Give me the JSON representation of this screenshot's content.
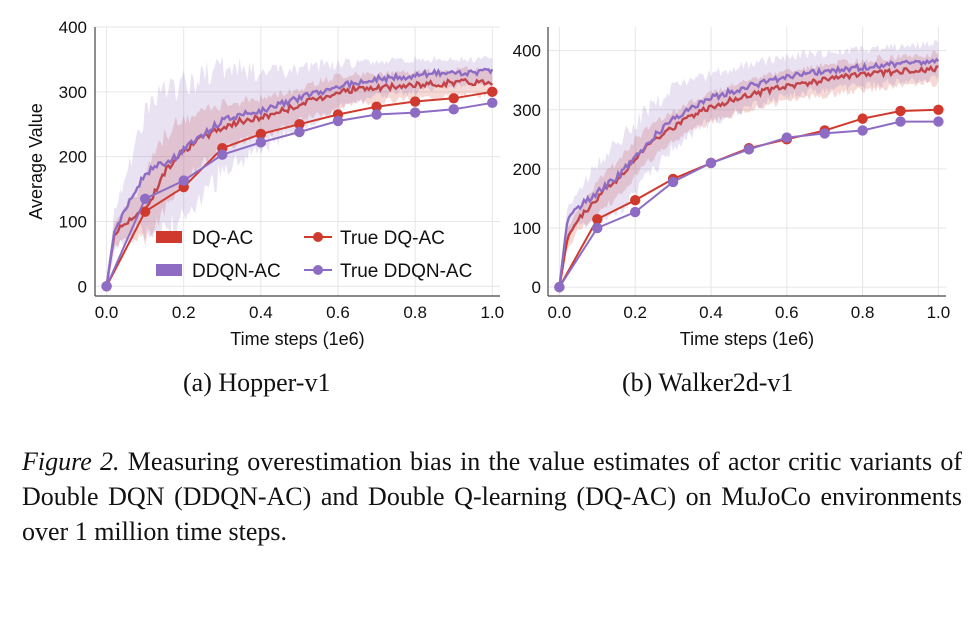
{
  "chart_data": [
    {
      "type": "line",
      "id": "hopper",
      "subcaption": "(a) Hopper-v1",
      "xlabel": "Time steps (1e6)",
      "ylabel": "Average Value",
      "xlim": [
        -0.03,
        1.02
      ],
      "ylim": [
        -15,
        400
      ],
      "xticks": [
        "0.0",
        "0.2",
        "0.4",
        "0.6",
        "0.8",
        "1.0"
      ],
      "yticks": [
        "0",
        "100",
        "200",
        "300",
        "400"
      ],
      "grid": true,
      "legend": {
        "placement": "lower-left",
        "entries": [
          "DQ-AC",
          "True DQ-AC",
          "DDQN-AC",
          "True DDQN-AC"
        ]
      },
      "series": [
        {
          "name": "DQ-AC",
          "kind": "estimate",
          "color": "#d03a2e",
          "x": [
            0,
            0.02,
            0.05,
            0.08,
            0.1,
            0.12,
            0.15,
            0.18,
            0.2,
            0.25,
            0.3,
            0.35,
            0.4,
            0.45,
            0.5,
            0.55,
            0.6,
            0.65,
            0.7,
            0.75,
            0.8,
            0.85,
            0.9,
            0.95,
            1.0
          ],
          "y": [
            0,
            80,
            100,
            110,
            120,
            140,
            175,
            200,
            210,
            230,
            245,
            255,
            260,
            270,
            280,
            290,
            300,
            305,
            305,
            308,
            310,
            312,
            315,
            315,
            315
          ],
          "band": [
            0,
            20,
            25,
            35,
            50,
            55,
            55,
            50,
            45,
            40,
            35,
            30,
            30,
            28,
            25,
            25,
            25,
            22,
            22,
            20,
            20,
            20,
            20,
            20,
            20
          ]
        },
        {
          "name": "DDQN-AC",
          "kind": "estimate",
          "color": "#8e6cc4",
          "x": [
            0,
            0.02,
            0.05,
            0.08,
            0.1,
            0.12,
            0.15,
            0.18,
            0.2,
            0.25,
            0.3,
            0.35,
            0.4,
            0.45,
            0.5,
            0.55,
            0.6,
            0.65,
            0.7,
            0.75,
            0.8,
            0.85,
            0.9,
            0.95,
            1.0
          ],
          "y": [
            0,
            85,
            120,
            155,
            170,
            185,
            190,
            200,
            210,
            235,
            255,
            265,
            270,
            280,
            290,
            300,
            308,
            315,
            320,
            322,
            325,
            328,
            330,
            330,
            332
          ],
          "band": [
            0,
            30,
            50,
            70,
            90,
            100,
            105,
            105,
            100,
            90,
            80,
            70,
            60,
            50,
            45,
            40,
            35,
            30,
            28,
            25,
            25,
            22,
            20,
            20,
            20
          ]
        },
        {
          "name": "True DQ-AC",
          "kind": "true",
          "color": "#d03a2e",
          "x": [
            0,
            0.1,
            0.2,
            0.3,
            0.4,
            0.5,
            0.6,
            0.7,
            0.8,
            0.9,
            1.0
          ],
          "y": [
            0,
            115,
            153,
            213,
            235,
            250,
            265,
            277,
            285,
            290,
            300
          ]
        },
        {
          "name": "True DDQN-AC",
          "kind": "true",
          "color": "#8e6cc4",
          "x": [
            0,
            0.1,
            0.2,
            0.3,
            0.4,
            0.5,
            0.6,
            0.7,
            0.8,
            0.9,
            1.0
          ],
          "y": [
            0,
            135,
            163,
            203,
            222,
            238,
            255,
            265,
            268,
            273,
            283
          ]
        }
      ]
    },
    {
      "type": "line",
      "id": "walker",
      "subcaption": "(b) Walker2d-v1",
      "xlabel": "Time steps (1e6)",
      "ylabel": "",
      "xlim": [
        -0.03,
        1.02
      ],
      "ylim": [
        -15,
        440
      ],
      "xticks": [
        "0.0",
        "0.2",
        "0.4",
        "0.6",
        "0.8",
        "1.0"
      ],
      "yticks": [
        "0",
        "100",
        "200",
        "300",
        "400"
      ],
      "grid": true,
      "series": [
        {
          "name": "DQ-AC",
          "kind": "estimate",
          "color": "#d03a2e",
          "x": [
            0,
            0.02,
            0.05,
            0.08,
            0.1,
            0.12,
            0.15,
            0.18,
            0.2,
            0.25,
            0.3,
            0.35,
            0.4,
            0.45,
            0.5,
            0.55,
            0.6,
            0.65,
            0.7,
            0.75,
            0.8,
            0.85,
            0.9,
            0.95,
            1.0
          ],
          "y": [
            0,
            80,
            115,
            135,
            150,
            165,
            180,
            200,
            220,
            250,
            270,
            290,
            305,
            315,
            325,
            333,
            340,
            345,
            350,
            355,
            358,
            362,
            365,
            368,
            370
          ],
          "band": [
            0,
            15,
            20,
            25,
            30,
            30,
            30,
            30,
            30,
            28,
            25,
            25,
            25,
            25,
            25,
            25,
            25,
            25,
            25,
            25,
            25,
            25,
            25,
            25,
            25
          ]
        },
        {
          "name": "DDQN-AC",
          "kind": "estimate",
          "color": "#8e6cc4",
          "x": [
            0,
            0.02,
            0.05,
            0.08,
            0.1,
            0.12,
            0.15,
            0.18,
            0.2,
            0.25,
            0.3,
            0.35,
            0.4,
            0.45,
            0.5,
            0.55,
            0.6,
            0.65,
            0.7,
            0.75,
            0.8,
            0.85,
            0.9,
            0.95,
            1.0
          ],
          "y": [
            0,
            110,
            135,
            150,
            160,
            170,
            185,
            205,
            220,
            255,
            285,
            305,
            320,
            330,
            340,
            348,
            355,
            362,
            365,
            368,
            372,
            375,
            377,
            380,
            382
          ],
          "band": [
            0,
            20,
            30,
            40,
            50,
            55,
            60,
            60,
            60,
            55,
            50,
            45,
            40,
            38,
            36,
            35,
            33,
            32,
            30,
            30,
            30,
            30,
            30,
            30,
            30
          ]
        },
        {
          "name": "True DQ-AC",
          "kind": "true",
          "color": "#d03a2e",
          "x": [
            0,
            0.1,
            0.2,
            0.3,
            0.4,
            0.5,
            0.6,
            0.7,
            0.8,
            0.9,
            1.0
          ],
          "y": [
            0,
            115,
            147,
            183,
            210,
            235,
            250,
            265,
            285,
            298,
            300
          ]
        },
        {
          "name": "True DDQN-AC",
          "kind": "true",
          "color": "#8e6cc4",
          "x": [
            0,
            0.1,
            0.2,
            0.3,
            0.4,
            0.5,
            0.6,
            0.7,
            0.8,
            0.9,
            1.0
          ],
          "y": [
            0,
            100,
            127,
            178,
            210,
            233,
            253,
            260,
            265,
            280,
            280
          ]
        }
      ]
    }
  ],
  "caption": {
    "label": "Figure 2.",
    "text": " Measuring overestimation bias in the value estimates of actor critic variants of Double DQN (DDQN-AC) and Double Q-learning (DQ-AC) on MuJoCo environments over 1 million time steps."
  }
}
